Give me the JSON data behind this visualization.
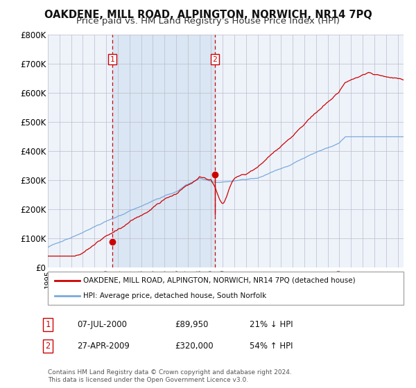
{
  "title": "OAKDENE, MILL ROAD, ALPINGTON, NORWICH, NR14 7PQ",
  "subtitle": "Price paid vs. HM Land Registry's House Price Index (HPI)",
  "legend_line1": "OAKDENE, MILL ROAD, ALPINGTON, NORWICH, NR14 7PQ (detached house)",
  "legend_line2": "HPI: Average price, detached house, South Norfolk",
  "table_row1": [
    "1",
    "07-JUL-2000",
    "£89,950",
    "21% ↓ HPI"
  ],
  "table_row2": [
    "2",
    "27-APR-2009",
    "£320,000",
    "54% ↑ HPI"
  ],
  "footnote": "Contains HM Land Registry data © Crown copyright and database right 2024.\nThis data is licensed under the Open Government Licence v3.0.",
  "ylim": [
    0,
    800000
  ],
  "yticks": [
    0,
    100000,
    200000,
    300000,
    400000,
    500000,
    600000,
    700000,
    800000
  ],
  "ytick_labels": [
    "£0",
    "£100K",
    "£200K",
    "£300K",
    "£400K",
    "£500K",
    "£600K",
    "£700K",
    "£800K"
  ],
  "sale1_year": 2000.52,
  "sale1_price": 89950,
  "sale2_year": 2009.32,
  "sale2_price": 320000,
  "xmin": 1995.0,
  "xmax": 2025.5,
  "background_color": "#ffffff",
  "plot_bg_color": "#eef3fa",
  "shaded_region_color": "#dae6f3",
  "grid_color": "#bbbbcc",
  "red_line_color": "#cc0000",
  "blue_line_color": "#7aaadd",
  "dashed_line_color": "#cc0000",
  "title_fontsize": 10.5,
  "subtitle_fontsize": 9.5
}
